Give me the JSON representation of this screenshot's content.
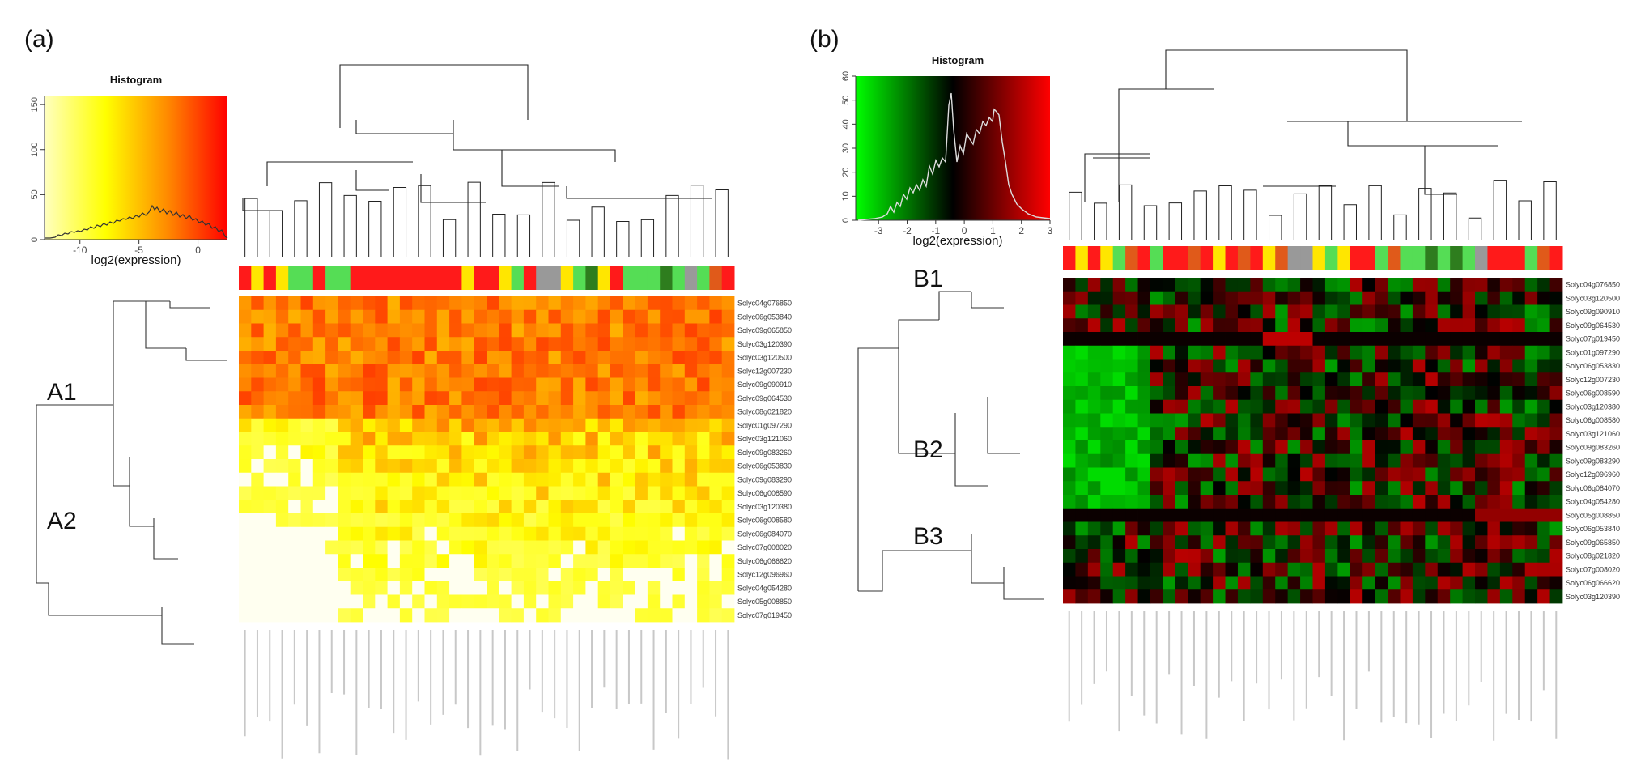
{
  "panels": [
    {
      "id": "a",
      "panel_label": "(a)",
      "histogram": {
        "title": "Histogram",
        "xlabel": "log2(expression)",
        "x_ticks": [
          -10,
          -5,
          0
        ],
        "y_ticks": [
          0,
          50,
          100,
          150
        ],
        "xlim": [
          -13,
          2.5
        ],
        "ylim": [
          0,
          160
        ],
        "gradient": [
          "#ffffc0",
          "#ffff00",
          "#ff8c00",
          "#ff0000"
        ]
      },
      "cluster_labels": [
        "A1",
        "A2"
      ],
      "cluster_row_index": [
        4,
        18
      ],
      "genes": [
        "Solyc04g076850",
        "Solyc06g053840",
        "Solyc09g065850",
        "Solyc03g120390",
        "Solyc03g120500",
        "Solyc12g007230",
        "Solyc09g090910",
        "Solyc09g064530",
        "Solyc08g021820",
        "Solyc01g097290",
        "Solyc03g121060",
        "Solyc09g083260",
        "Solyc06g053830",
        "Solyc09g083290",
        "Solyc06g008590",
        "Solyc03g120380",
        "Solyc06g008580",
        "Solyc06g084070",
        "Solyc07g008020",
        "Solyc06g066620",
        "Solyc12g096960",
        "Solyc04g054280",
        "Solyc05g008850",
        "Solyc07g019450"
      ],
      "n_columns": 40,
      "column_colors": [
        "#ff1a1a",
        "#ffe600",
        "#ff1a1a",
        "#ffe600",
        "#55dd55",
        "#55dd55",
        "#ff1a1a",
        "#55dd55",
        "#55dd55",
        "#ff1a1a",
        "#ff1a1a",
        "#ff1a1a",
        "#ff1a1a",
        "#ff1a1a",
        "#ff1a1a",
        "#ff1a1a",
        "#ff1a1a",
        "#ff1a1a",
        "#ffe600",
        "#ff1a1a",
        "#ff1a1a",
        "#ffe600",
        "#55dd55",
        "#ff1a1a",
        "#999999",
        "#999999",
        "#ffe600",
        "#55dd55",
        "#2e7d1e",
        "#ffe600",
        "#ff1a1a",
        "#55dd55",
        "#55dd55",
        "#55dd55",
        "#2e7d1e",
        "#55dd55",
        "#999999",
        "#55dd55",
        "#e05a1a",
        "#ff1a1a"
      ]
    },
    {
      "id": "b",
      "panel_label": "(b)",
      "histogram": {
        "title": "Histogram",
        "xlabel": "log2(expression)",
        "x_ticks": [
          -3,
          -2,
          -1,
          0,
          1,
          2,
          3
        ],
        "y_ticks": [
          0,
          10,
          20,
          30,
          40,
          50,
          60
        ],
        "xlim": [
          -3.8,
          3
        ],
        "ylim": [
          0,
          60
        ],
        "gradient": [
          "#00ff00",
          "#000000",
          "#ff0000"
        ]
      },
      "cluster_labels": [
        "B1",
        "B2",
        "B3"
      ],
      "cluster_row_index": [
        0,
        8,
        17
      ],
      "genes": [
        "Solyc04g076850",
        "Solyc03g120500",
        "Solyc09g090910",
        "Solyc09g064530",
        "Solyc07g019450",
        "Solyc01g097290",
        "Solyc06g053830",
        "Solyc12g007230",
        "Solyc06g008590",
        "Solyc03g120380",
        "Solyc06g008580",
        "Solyc03g121060",
        "Solyc09g083260",
        "Solyc09g083290",
        "Solyc12g096960",
        "Solyc06g084070",
        "Solyc04g054280",
        "Solyc05g008850",
        "Solyc06g053840",
        "Solyc09g065850",
        "Solyc08g021820",
        "Solyc07g008020",
        "Solyc06g066620",
        "Solyc03g120390"
      ],
      "n_columns": 40,
      "column_colors": [
        "#ff1a1a",
        "#ffe600",
        "#ff1a1a",
        "#ffe600",
        "#55dd55",
        "#e05a1a",
        "#ff1a1a",
        "#55dd55",
        "#ff1a1a",
        "#ff1a1a",
        "#e05a1a",
        "#ff1a1a",
        "#ffe600",
        "#ff1a1a",
        "#e05a1a",
        "#ff1a1a",
        "#ffe600",
        "#e05a1a",
        "#999999",
        "#999999",
        "#ffe600",
        "#55dd55",
        "#ffe600",
        "#ff1a1a",
        "#ff1a1a",
        "#55dd55",
        "#e05a1a",
        "#55dd55",
        "#55dd55",
        "#2e7d1e",
        "#55dd55",
        "#2e7d1e",
        "#55dd55",
        "#999999",
        "#ff1a1a",
        "#ff1a1a",
        "#ff1a1a",
        "#55dd55",
        "#e05a1a",
        "#ff1a1a"
      ]
    }
  ],
  "chart_data": [
    {
      "type": "heatmap",
      "panel": "(a)",
      "rows": [
        "Solyc04g076850",
        "Solyc06g053840",
        "Solyc09g065850",
        "Solyc03g120390",
        "Solyc03g120500",
        "Solyc12g007230",
        "Solyc09g090910",
        "Solyc09g064530",
        "Solyc08g021820",
        "Solyc01g097290",
        "Solyc03g121060",
        "Solyc09g083260",
        "Solyc06g053830",
        "Solyc09g083290",
        "Solyc06g008590",
        "Solyc03g120380",
        "Solyc06g008580",
        "Solyc06g084070",
        "Solyc07g008020",
        "Solyc06g066620",
        "Solyc12g096960",
        "Solyc04g054280",
        "Solyc05g008850",
        "Solyc07g019450"
      ],
      "row_clusters": {
        "A1": [
          0,
          8
        ],
        "A2": [
          9,
          23
        ]
      },
      "color_scale": [
        "white",
        "yellow",
        "orange",
        "red"
      ],
      "inset_histogram": {
        "title": "Histogram",
        "xlabel": "log2(expression)",
        "xlim": [
          -13,
          2.5
        ],
        "ylim": [
          0,
          160
        ]
      }
    },
    {
      "type": "heatmap",
      "panel": "(b)",
      "rows": [
        "Solyc04g076850",
        "Solyc03g120500",
        "Solyc09g090910",
        "Solyc09g064530",
        "Solyc07g019450",
        "Solyc01g097290",
        "Solyc06g053830",
        "Solyc12g007230",
        "Solyc06g008590",
        "Solyc03g120380",
        "Solyc06g008580",
        "Solyc03g121060",
        "Solyc09g083260",
        "Solyc09g083290",
        "Solyc12g096960",
        "Solyc06g084070",
        "Solyc04g054280",
        "Solyc05g008850",
        "Solyc06g053840",
        "Solyc09g065850",
        "Solyc08g021820",
        "Solyc07g008020",
        "Solyc06g066620",
        "Solyc03g120390"
      ],
      "row_clusters": {
        "B1": [
          0,
          4
        ],
        "B2": [
          5,
          16
        ],
        "B3": [
          17,
          23
        ]
      },
      "color_scale": [
        "green",
        "black",
        "red"
      ],
      "inset_histogram": {
        "title": "Histogram",
        "xlabel": "log2(expression)",
        "xlim": [
          -3.8,
          3
        ],
        "ylim": [
          0,
          60
        ]
      }
    }
  ]
}
